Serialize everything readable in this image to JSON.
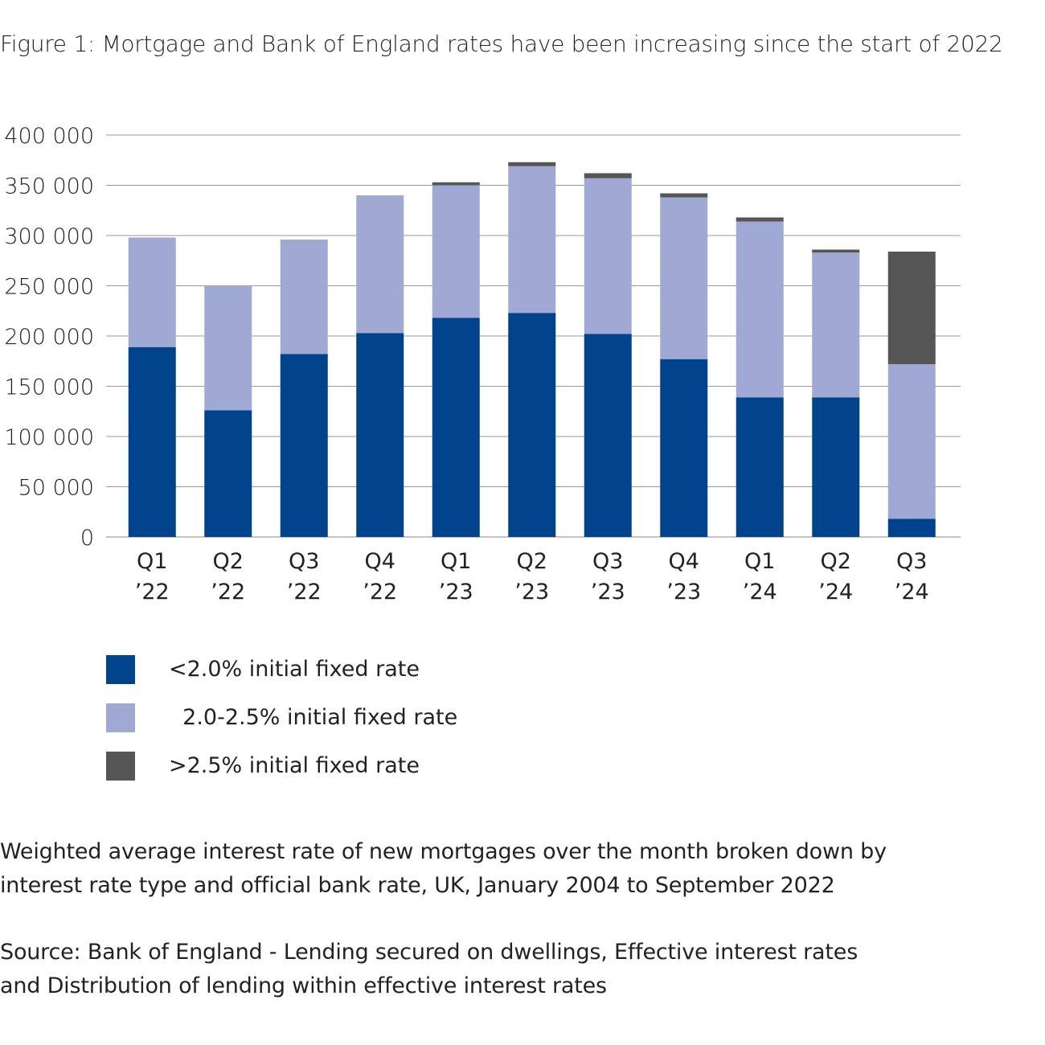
{
  "title": "Figure 1: Mortgage and Bank of England rates have been increasing since the start of 2022",
  "chart_data": {
    "type": "bar",
    "stacked": true,
    "title": "Figure 1: Mortgage and Bank of England rates have been increasing since the start of 2022",
    "xlabel": "",
    "ylabel": "",
    "ylim": [
      0,
      400000
    ],
    "yticks": [
      0,
      50000,
      100000,
      150000,
      200000,
      250000,
      300000,
      350000,
      400000
    ],
    "ytick_labels": [
      "0",
      "50 000",
      "100 000",
      "150 000",
      "200 000",
      "250 000",
      "300 000",
      "350 000",
      "400 000"
    ],
    "grid": true,
    "categories": [
      {
        "q": "Q1",
        "y": "’22"
      },
      {
        "q": "Q2",
        "y": "’22"
      },
      {
        "q": "Q3",
        "y": "’22"
      },
      {
        "q": "Q4",
        "y": "’22"
      },
      {
        "q": "Q1",
        "y": "’23"
      },
      {
        "q": "Q2",
        "y": "’23"
      },
      {
        "q": "Q3",
        "y": "’23"
      },
      {
        "q": "Q4",
        "y": "’23"
      },
      {
        "q": "Q1",
        "y": "’24"
      },
      {
        "q": "Q2",
        "y": "’24"
      },
      {
        "q": "Q3",
        "y": "’24"
      }
    ],
    "series": [
      {
        "name": "<2.0% initial fixed rate",
        "label": "<2.0% initial fixed rate",
        "color": "#00438a",
        "values": [
          189000,
          126000,
          182000,
          203000,
          218000,
          223000,
          202000,
          177000,
          139000,
          139000,
          18000
        ]
      },
      {
        "name": "2.0-2.5% initial fixed rate",
        "label": "  2.0-2.5% initial fixed rate",
        "color": "#a0a9d3",
        "values": [
          109000,
          124000,
          114000,
          137000,
          132000,
          146000,
          155000,
          161000,
          175000,
          144000,
          154000
        ]
      },
      {
        "name": ">2.5% initial fixed rate",
        "label": ">2.5% initial fixed rate",
        "color": "#555555",
        "values": [
          0,
          0,
          0,
          0,
          3000,
          4000,
          5000,
          4000,
          4000,
          3000,
          112000
        ]
      }
    ],
    "legend_position": "bottom-left"
  },
  "notes": {
    "line1": "Weighted average interest rate of new mortgages over the month broken down by",
    "line2": "interest rate type and official bank rate, UK, January 2004 to September 2022",
    "source1": "Source: Bank of England - Lending secured on dwellings, Effective interest rates",
    "source2": "and Distribution of lending within effective interest rates"
  }
}
